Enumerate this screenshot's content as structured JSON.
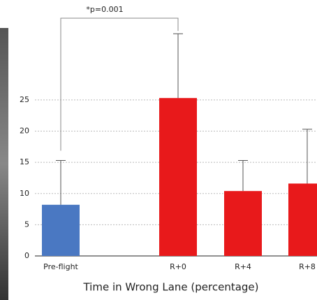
{
  "chart_data": {
    "type": "bar",
    "annotation": "*p=0.001",
    "x_label": "Time in Wrong Lane (percentage)",
    "categories": [
      "Pre-flight",
      "R+0",
      "R+4",
      "R+8"
    ],
    "values": [
      8.2,
      25.3,
      10.4,
      11.6
    ],
    "errors": [
      7.1,
      10.3,
      4.9,
      8.7
    ],
    "colors": [
      "#4a78c2",
      "#e8191b",
      "#e8191b",
      "#e8191b"
    ],
    "ylim": [
      0,
      40
    ],
    "yticks": [
      0,
      5,
      10,
      15,
      20,
      25
    ],
    "grid": true
  }
}
